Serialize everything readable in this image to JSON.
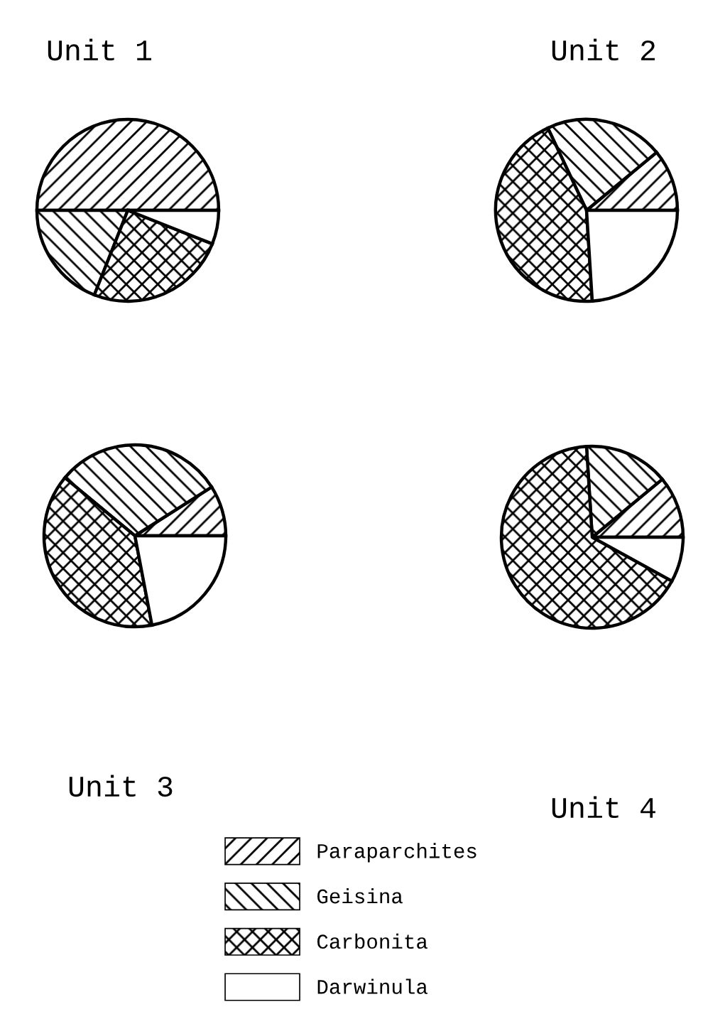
{
  "chart_data": [
    {
      "type": "pie",
      "title": "Unit 1",
      "categories": [
        "Paraparchites",
        "Geisina",
        "Carbonita",
        "Darwinula"
      ],
      "values": [
        50,
        19,
        25,
        6
      ],
      "legend": "bottom"
    },
    {
      "type": "pie",
      "title": "Unit 2",
      "categories": [
        null,
        null,
        null,
        null
      ],
      "values": [
        11,
        21,
        44,
        24
      ]
    },
    {
      "type": "pie",
      "title": "Unit 3",
      "categories": [
        null,
        null,
        null,
        null
      ],
      "values": [
        9,
        30,
        39,
        22
      ]
    },
    {
      "type": "pie",
      "title": "Unit 4",
      "categories": [
        null,
        null,
        null,
        null
      ],
      "values": [
        11,
        15,
        66,
        8
      ]
    }
  ]
}
